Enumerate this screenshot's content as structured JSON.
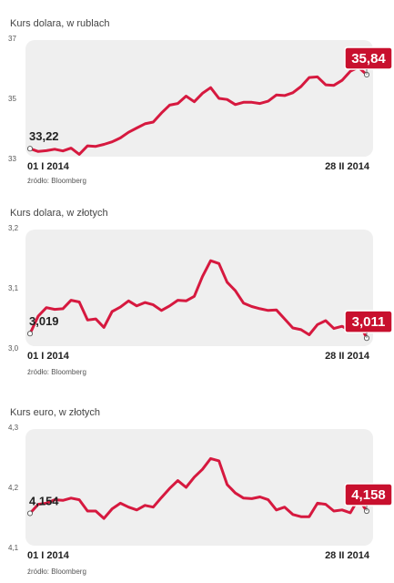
{
  "colors": {
    "line": "#d6193f",
    "panel": "#efefef",
    "badge": "#c8102e"
  },
  "source_label": "źródło: Bloomberg",
  "chart_data": [
    {
      "type": "line",
      "title": "Kurs dolara, w rublach",
      "ylim": [
        33,
        37
      ],
      "yticks": [
        "37",
        "35",
        "33"
      ],
      "xlabels": [
        "01 I 2014",
        "28 II 2014"
      ],
      "start_label": "33,22",
      "end_label": "35,84",
      "series": [
        {
          "values": [
            33.22,
            33.12,
            33.15,
            33.2,
            33.14,
            33.24,
            33.02,
            33.32,
            33.3,
            33.37,
            33.46,
            33.6,
            33.8,
            33.95,
            34.1,
            34.16,
            34.48,
            34.76,
            34.82,
            35.08,
            34.88,
            35.18,
            35.38,
            35.0,
            34.96,
            34.78,
            34.86,
            34.86,
            34.82,
            34.9,
            35.12,
            35.1,
            35.2,
            35.42,
            35.74,
            35.76,
            35.48,
            35.46,
            35.64,
            35.96,
            36.1,
            35.84
          ]
        }
      ]
    },
    {
      "type": "line",
      "title": "Kurs dolara, w złotych",
      "ylim": [
        3.0,
        3.2
      ],
      "yticks": [
        "3,2",
        "3,1",
        "3,0"
      ],
      "xlabels": [
        "01 I 2014",
        "28 II 2014"
      ],
      "start_label": "3,019",
      "end_label": "3,011",
      "series": [
        {
          "values": [
            3.019,
            3.05,
            3.065,
            3.062,
            3.063,
            3.078,
            3.075,
            3.043,
            3.045,
            3.03,
            3.058,
            3.066,
            3.077,
            3.068,
            3.074,
            3.07,
            3.06,
            3.068,
            3.078,
            3.077,
            3.085,
            3.12,
            3.148,
            3.143,
            3.11,
            3.095,
            3.073,
            3.067,
            3.063,
            3.06,
            3.061,
            3.045,
            3.029,
            3.026,
            3.017,
            3.035,
            3.042,
            3.028,
            3.032,
            3.024,
            3.04,
            3.011
          ]
        }
      ]
    },
    {
      "type": "line",
      "title": "Kurs euro, w złotych",
      "ylim": [
        4.1,
        4.3
      ],
      "yticks": [
        "4,3",
        "4,2",
        "4,1"
      ],
      "xlabels": [
        "01 I 2014",
        "28 II 2014"
      ],
      "start_label": "4,154",
      "end_label": "4,158",
      "series": [
        {
          "values": [
            4.154,
            4.17,
            4.172,
            4.178,
            4.177,
            4.181,
            4.178,
            4.158,
            4.158,
            4.145,
            4.162,
            4.172,
            4.165,
            4.16,
            4.168,
            4.165,
            4.182,
            4.198,
            4.212,
            4.2,
            4.218,
            4.232,
            4.251,
            4.247,
            4.205,
            4.19,
            4.181,
            4.18,
            4.183,
            4.178,
            4.16,
            4.165,
            4.152,
            4.148,
            4.148,
            4.172,
            4.17,
            4.158,
            4.16,
            4.155,
            4.18,
            4.158
          ]
        }
      ]
    }
  ]
}
